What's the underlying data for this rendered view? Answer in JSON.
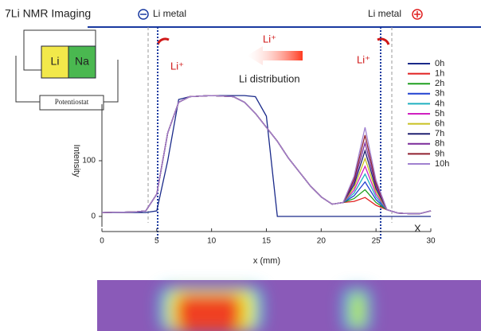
{
  "chart_data": {
    "type": "line",
    "title": "7Li NMR Imaging",
    "x_label": "x (mm)",
    "y_label": "Intensity",
    "annotations": [
      "Li metal",
      "Li metal",
      "Li⁺",
      "Li⁺",
      "Li⁺",
      "Li distribution",
      "Li",
      "Na",
      "Potentiostat",
      "X"
    ],
    "x": [
      0,
      3,
      4,
      5,
      6,
      7,
      8,
      10,
      12,
      13,
      14,
      15,
      16,
      17,
      18,
      19,
      20,
      21,
      22,
      23,
      24,
      25,
      26,
      27,
      28,
      29,
      30
    ],
    "xlim": [
      0,
      30
    ],
    "xticks": [
      0,
      5,
      10,
      15,
      20,
      25,
      30
    ],
    "ylim": [
      -10,
      230
    ],
    "yticks": [
      0,
      100
    ],
    "series": [
      {
        "name": "0h",
        "color": "#1a2a8a",
        "values": [
          7,
          7,
          7,
          10,
          100,
          210,
          215,
          217,
          217,
          217,
          215,
          180,
          0,
          0,
          0,
          0,
          0,
          0,
          0,
          0,
          0,
          0,
          0,
          0,
          0,
          0,
          0
        ]
      },
      {
        "name": "1h",
        "color": "#e02020",
        "values": [
          7,
          8,
          10,
          40,
          150,
          205,
          215,
          217,
          215,
          205,
          185,
          160,
          135,
          105,
          80,
          55,
          35,
          22,
          25,
          27,
          34,
          20,
          12,
          6,
          5,
          5,
          10
        ]
      },
      {
        "name": "2h",
        "color": "#20a020",
        "values": [
          7,
          8,
          10,
          40,
          150,
          205,
          215,
          217,
          215,
          205,
          185,
          160,
          135,
          105,
          80,
          55,
          35,
          22,
          25,
          32,
          48,
          25,
          12,
          6,
          5,
          5,
          10
        ]
      },
      {
        "name": "3h",
        "color": "#2040d0",
        "values": [
          7,
          8,
          10,
          40,
          150,
          205,
          215,
          217,
          215,
          205,
          185,
          160,
          135,
          105,
          80,
          55,
          35,
          22,
          25,
          37,
          62,
          30,
          12,
          6,
          5,
          5,
          10
        ]
      },
      {
        "name": "4h",
        "color": "#20b0c0",
        "values": [
          7,
          8,
          10,
          40,
          150,
          205,
          215,
          217,
          215,
          205,
          185,
          160,
          135,
          105,
          80,
          55,
          35,
          22,
          25,
          42,
          76,
          35,
          12,
          6,
          5,
          5,
          10
        ]
      },
      {
        "name": "5h",
        "color": "#d020c0",
        "values": [
          7,
          8,
          10,
          40,
          150,
          205,
          215,
          217,
          215,
          205,
          185,
          160,
          135,
          105,
          80,
          55,
          35,
          22,
          25,
          47,
          90,
          40,
          12,
          6,
          5,
          5,
          10
        ]
      },
      {
        "name": "6h",
        "color": "#c8c020",
        "values": [
          7,
          8,
          10,
          40,
          150,
          205,
          215,
          217,
          215,
          205,
          185,
          160,
          135,
          105,
          80,
          55,
          35,
          22,
          25,
          52,
          104,
          45,
          12,
          6,
          5,
          5,
          10
        ]
      },
      {
        "name": "7h",
        "color": "#202070",
        "values": [
          7,
          8,
          10,
          40,
          150,
          205,
          215,
          217,
          215,
          205,
          185,
          160,
          135,
          105,
          80,
          55,
          35,
          22,
          25,
          57,
          118,
          50,
          12,
          6,
          5,
          5,
          10
        ]
      },
      {
        "name": "8h",
        "color": "#7a2a9a",
        "values": [
          7,
          8,
          10,
          40,
          150,
          205,
          215,
          217,
          215,
          205,
          185,
          160,
          135,
          105,
          80,
          55,
          35,
          22,
          25,
          62,
          132,
          55,
          12,
          6,
          5,
          5,
          10
        ]
      },
      {
        "name": "9h",
        "color": "#902030",
        "values": [
          7,
          8,
          10,
          40,
          150,
          205,
          215,
          217,
          215,
          205,
          185,
          160,
          135,
          105,
          80,
          55,
          35,
          22,
          25,
          67,
          146,
          60,
          12,
          6,
          5,
          5,
          10
        ]
      },
      {
        "name": "10h",
        "color": "#a080d0",
        "values": [
          7,
          8,
          10,
          40,
          150,
          205,
          215,
          217,
          215,
          205,
          185,
          160,
          135,
          105,
          80,
          55,
          35,
          22,
          25,
          72,
          160,
          65,
          12,
          6,
          5,
          5,
          10
        ]
      }
    ]
  }
}
